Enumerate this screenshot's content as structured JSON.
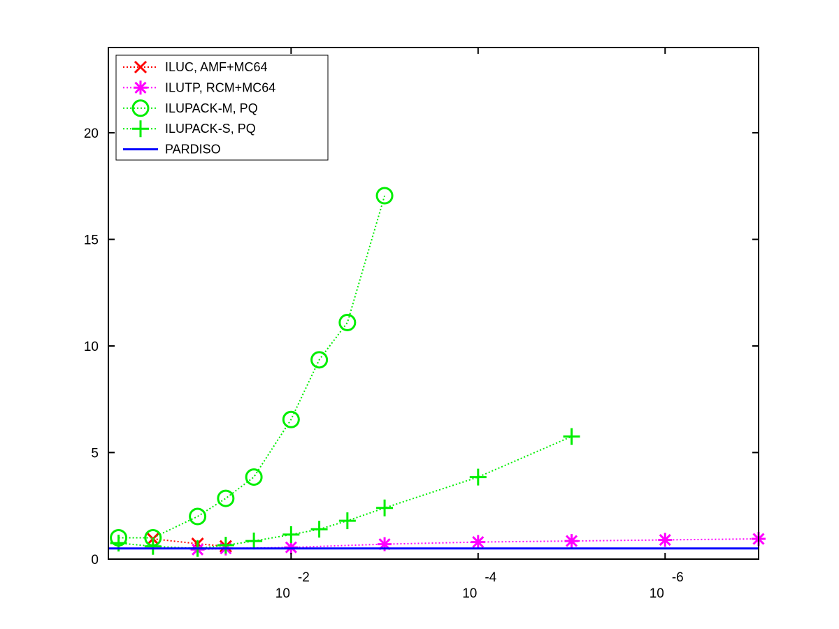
{
  "chart_data": {
    "type": "line",
    "x_scale": "log-reversed",
    "xlim": [
      0.9,
      1e-07
    ],
    "ylim": [
      0,
      24
    ],
    "x_ticks": [
      {
        "value": 0.01,
        "base": "10",
        "exponent": "-2"
      },
      {
        "value": 0.0001,
        "base": "10",
        "exponent": "-4"
      },
      {
        "value": 1e-06,
        "base": "10",
        "exponent": "-6"
      }
    ],
    "y_ticks": [
      0,
      5,
      10,
      15,
      20
    ],
    "y_tick_labels": [
      "0",
      "5",
      "10",
      "15",
      "20"
    ],
    "grid": false,
    "legend_position": "top-left",
    "series": [
      {
        "name": "ILUC, AMF+MC64",
        "color": "#ff0000",
        "marker": "x",
        "line": "dotted",
        "x": [
          0.3,
          0.1,
          0.05
        ],
        "y": [
          0.95,
          0.72,
          0.6
        ]
      },
      {
        "name": "ILUTP, RCM+MC64",
        "color": "#ff00ff",
        "marker": "star",
        "line": "dotted",
        "x": [
          0.1,
          0.05,
          0.01,
          0.001,
          0.0001,
          1e-05,
          1e-06,
          1e-07
        ],
        "y": [
          0.45,
          0.5,
          0.55,
          0.7,
          0.8,
          0.85,
          0.9,
          0.95
        ]
      },
      {
        "name": "ILUPACK-M, PQ",
        "color": "#00ee00",
        "marker": "circle",
        "line": "dotted",
        "x": [
          0.7,
          0.3,
          0.1,
          0.05,
          0.025,
          0.01,
          0.005,
          0.0025,
          0.001
        ],
        "y": [
          1.0,
          1.0,
          2.0,
          2.85,
          3.85,
          6.55,
          9.35,
          11.1,
          17.05
        ]
      },
      {
        "name": "ILUPACK-S, PQ",
        "color": "#00ee00",
        "marker": "plus",
        "line": "dotted",
        "x": [
          0.7,
          0.3,
          0.1,
          0.05,
          0.025,
          0.01,
          0.005,
          0.0025,
          0.001,
          0.0001,
          1e-05
        ],
        "y": [
          0.75,
          0.6,
          0.5,
          0.65,
          0.85,
          1.15,
          1.4,
          1.8,
          2.4,
          3.85,
          5.75
        ]
      },
      {
        "name": "PARDISO",
        "color": "#0000ff",
        "marker": "none",
        "line": "solid",
        "x": [
          0.9,
          1e-07
        ],
        "y": [
          0.5,
          0.5
        ]
      }
    ]
  }
}
